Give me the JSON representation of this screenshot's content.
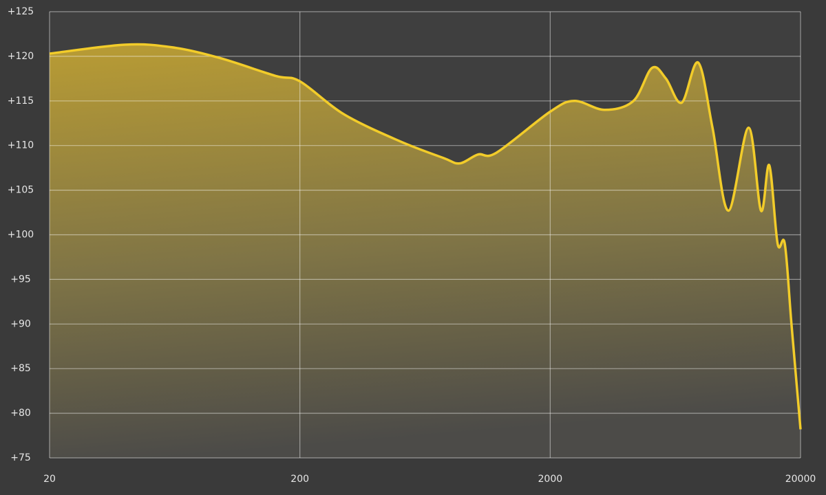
{
  "chart_data": {
    "type": "area",
    "x": [
      20,
      40,
      62,
      96,
      160,
      200,
      300,
      500,
      750,
      870,
      1030,
      1220,
      2000,
      2500,
      3300,
      4300,
      5100,
      5800,
      6700,
      7800,
      8900,
      10300,
      12400,
      13900,
      15000,
      16200,
      17300,
      18400,
      20000
    ],
    "values": [
      120.3,
      121.3,
      121,
      119.8,
      117.8,
      117.2,
      113.5,
      110.5,
      108.6,
      108,
      109,
      109.2,
      113.8,
      115,
      114,
      115,
      118.7,
      117.5,
      114.8,
      119.3,
      112,
      102.7,
      112,
      102.7,
      107.8,
      99,
      99,
      90,
      78.2
    ],
    "color": "#f2cc2a",
    "xscale": "log",
    "xlim": [
      20,
      20000
    ],
    "xticks": [
      20,
      200,
      2000,
      20000
    ],
    "ylim": [
      75,
      125
    ],
    "yticks": [
      {
        "value": 75,
        "label": "+75"
      },
      {
        "value": 80,
        "label": "+80"
      },
      {
        "value": 85,
        "label": "+85"
      },
      {
        "value": 90,
        "label": "+90"
      },
      {
        "value": 95,
        "label": "+95"
      },
      {
        "value": 100,
        "label": "+100"
      },
      {
        "value": 105,
        "label": "+105"
      },
      {
        "value": 110,
        "label": "+110"
      },
      {
        "value": 115,
        "label": "+115"
      },
      {
        "value": 120,
        "label": "+120"
      },
      {
        "value": 125,
        "label": "+125"
      }
    ],
    "grid": true
  }
}
